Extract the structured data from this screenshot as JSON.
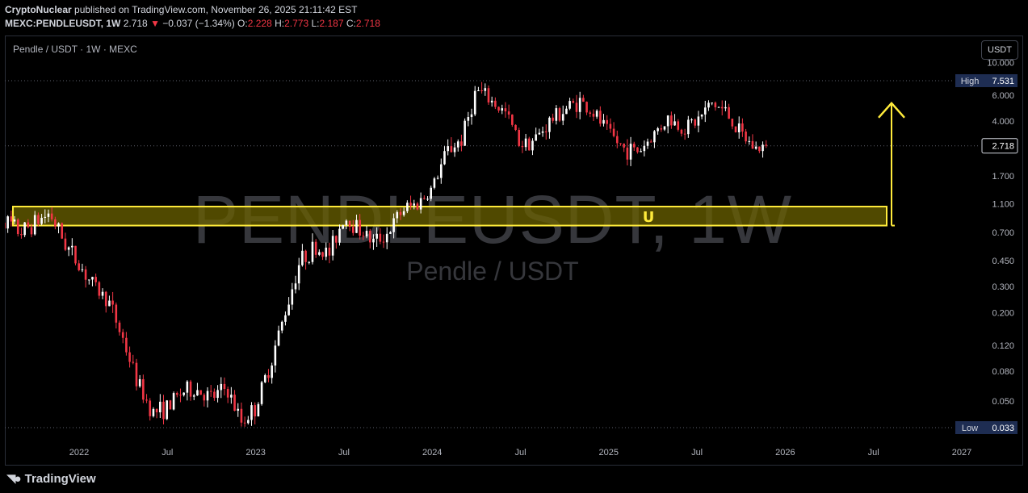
{
  "header": {
    "author": "CryptoNuclear",
    "published_text": "published on TradingView.com, November 26, 2025 21:11:42 EST",
    "symbol": "MEXC:PENDLEUSDT, 1W",
    "price": "2.718",
    "change": "−0.037 (−1.34%)",
    "o_label": "O:",
    "o_value": "2.228",
    "h_label": "H:",
    "h_value": "2.773",
    "l_label": "L:",
    "l_value": "2.187",
    "c_label": "C:",
    "c_value": "2.718"
  },
  "legend_title": "Pendle / USDT · 1W · MEXC",
  "currency_button": "USDT",
  "watermark": {
    "main": "PENDLEUSDT, 1W",
    "sub": "Pendle / USDT"
  },
  "footer": {
    "logo_text": "TradingView"
  },
  "colors": {
    "up": "#ffffff",
    "down": "#f23645",
    "zone_fill": "#6b6100",
    "zone_border": "#ffeb3b",
    "arrow": "#ffeb3b",
    "label_bg": "#1e2d52"
  },
  "chart_data": {
    "type": "candlestick",
    "y_scale": "log",
    "ylim": [
      0.028,
      10.5
    ],
    "y_ticks": [
      "10.000",
      "6.000",
      "4.000",
      "2.718",
      "1.700",
      "1.100",
      "0.700",
      "0.450",
      "0.300",
      "0.200",
      "0.120",
      "0.080",
      "0.050"
    ],
    "x_ticks": [
      {
        "label": "2022",
        "date": "2022-01"
      },
      {
        "label": "Jul",
        "date": "2022-07"
      },
      {
        "label": "2023",
        "date": "2023-01"
      },
      {
        "label": "Jul",
        "date": "2023-07"
      },
      {
        "label": "2024",
        "date": "2024-01"
      },
      {
        "label": "Jul",
        "date": "2024-07"
      },
      {
        "label": "2025",
        "date": "2025-01"
      },
      {
        "label": "Jul",
        "date": "2025-07"
      },
      {
        "label": "2026",
        "date": "2026-01"
      },
      {
        "label": "Jul",
        "date": "2026-07"
      },
      {
        "label": "2027",
        "date": "2027-01"
      }
    ],
    "high": {
      "label": "High",
      "value": "7.531"
    },
    "low": {
      "label": "Low",
      "value": "0.033"
    },
    "last_price": "2.718",
    "zone": {
      "low": 0.78,
      "high": 1.05
    },
    "arrow_target": 5.3,
    "anchor_points": [
      [
        "2021-07",
        1.0
      ],
      [
        "2021-09",
        0.7
      ],
      [
        "2021-11",
        0.95
      ],
      [
        "2021-12",
        0.6
      ],
      [
        "2022-02",
        0.3
      ],
      [
        "2022-03",
        0.24
      ],
      [
        "2022-04",
        0.13
      ],
      [
        "2022-05",
        0.065
      ],
      [
        "2022-06",
        0.042
      ],
      [
        "2022-07",
        0.045
      ],
      [
        "2022-08",
        0.058
      ],
      [
        "2022-09",
        0.06
      ],
      [
        "2022-10",
        0.052
      ],
      [
        "2022-11",
        0.062
      ],
      [
        "2022-12",
        0.036
      ],
      [
        "2023-01",
        0.045
      ],
      [
        "2023-02",
        0.09
      ],
      [
        "2023-03",
        0.2
      ],
      [
        "2023-04",
        0.45
      ],
      [
        "2023-05",
        0.55
      ],
      [
        "2023-06",
        0.5
      ],
      [
        "2023-07",
        0.9
      ],
      [
        "2023-08",
        0.75
      ],
      [
        "2023-09",
        0.6
      ],
      [
        "2023-10",
        0.7
      ],
      [
        "2023-11",
        1.0
      ],
      [
        "2023-12",
        1.1
      ],
      [
        "2024-01",
        1.4
      ],
      [
        "2024-02",
        2.5
      ],
      [
        "2024-03",
        3.0
      ],
      [
        "2024-04",
        6.5
      ],
      [
        "2024-05",
        5.5
      ],
      [
        "2024-06",
        4.5
      ],
      [
        "2024-07",
        2.8
      ],
      [
        "2024-08",
        3.0
      ],
      [
        "2024-09",
        4.0
      ],
      [
        "2024-10",
        4.8
      ],
      [
        "2024-11",
        5.5
      ],
      [
        "2024-12",
        4.5
      ],
      [
        "2025-01",
        3.3
      ],
      [
        "2025-02",
        2.6
      ],
      [
        "2025-03",
        2.5
      ],
      [
        "2025-04",
        3.2
      ],
      [
        "2025-05",
        4.2
      ],
      [
        "2025-06",
        3.6
      ],
      [
        "2025-07",
        4.0
      ],
      [
        "2025-08",
        5.3
      ],
      [
        "2025-09",
        4.6
      ],
      [
        "2025-10",
        3.2
      ],
      [
        "2025-11",
        2.6
      ],
      [
        "2025-11-24",
        2.718
      ]
    ]
  }
}
